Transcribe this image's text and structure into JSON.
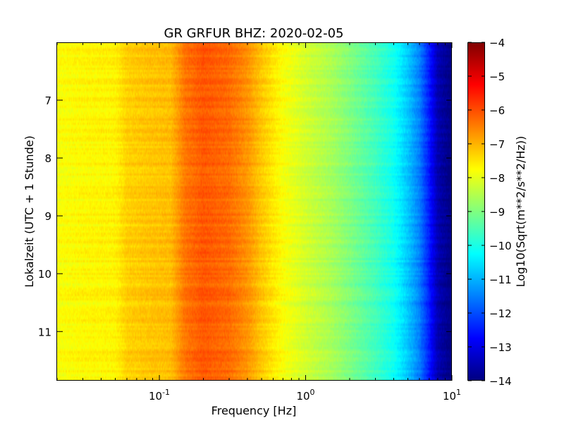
{
  "chart_data": {
    "type": "heatmap",
    "title": "GR GRFUR BHZ: 2020-02-05",
    "xlabel": "Frequency [Hz]",
    "ylabel": "Lokalzeit (UTC + 1 Stunde)",
    "xscale": "log",
    "xlim": [
      0.02,
      10
    ],
    "ylim": [
      6.0,
      11.85
    ],
    "y_inverted": true,
    "x_ticks": [
      {
        "value": 0.1,
        "base": "10",
        "exp": "-1"
      },
      {
        "value": 1,
        "base": "10",
        "exp": "0"
      },
      {
        "value": 10,
        "base": "10",
        "exp": "1"
      }
    ],
    "y_ticks": [
      7,
      8,
      9,
      10,
      11
    ],
    "y_tick_labels": [
      "7",
      "8",
      "9",
      "10",
      "11"
    ],
    "colorbar": {
      "label": "Log10(Sqrt(m**2/s**2/Hz))",
      "colormap": "jet",
      "range": [
        -14,
        -4
      ],
      "ticks": [
        -4,
        -5,
        -6,
        -7,
        -8,
        -9,
        -10,
        -11,
        -12,
        -13,
        -14
      ],
      "tick_labels": [
        "−4",
        "−5",
        "−6",
        "−7",
        "−8",
        "−9",
        "−10",
        "−11",
        "−12",
        "−13",
        "−14"
      ]
    },
    "spectrum_profile": {
      "frequency_hz": [
        0.02,
        0.03,
        0.05,
        0.06,
        0.08,
        0.12,
        0.15,
        0.2,
        0.3,
        0.4,
        0.5,
        0.7,
        1.0,
        1.5,
        2.0,
        3.0,
        4.0,
        5.0,
        6.0,
        7.0,
        8.0,
        10.0
      ],
      "log10_amplitude": [
        -7.8,
        -7.7,
        -7.65,
        -7.3,
        -7.2,
        -7.1,
        -6.4,
        -6.1,
        -6.3,
        -6.7,
        -7.2,
        -7.8,
        -8.2,
        -8.6,
        -9.0,
        -9.6,
        -10.1,
        -10.8,
        -11.5,
        -12.5,
        -13.5,
        -14.0
      ]
    }
  }
}
